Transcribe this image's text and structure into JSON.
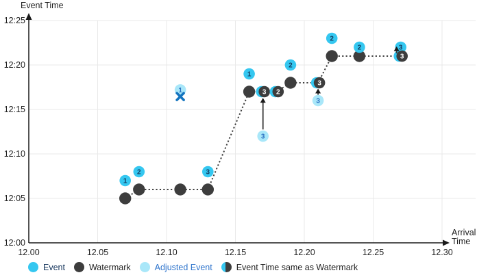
{
  "chart_data": {
    "type": "scatter",
    "x_axis": {
      "label_line1": "Arrival",
      "label_line2": "Time",
      "range": [
        12.0,
        12.3
      ],
      "ticks": [
        {
          "v": 12.0,
          "label": "12.00"
        },
        {
          "v": 12.05,
          "label": "12.05"
        },
        {
          "v": 12.1,
          "label": "12.10"
        },
        {
          "v": 12.15,
          "label": "12.15"
        },
        {
          "v": 12.2,
          "label": "12.20"
        },
        {
          "v": 12.25,
          "label": "12.25"
        },
        {
          "v": 12.3,
          "label": "12.30"
        }
      ]
    },
    "y_axis": {
      "label": "Event Time",
      "range_minutes": [
        0,
        25
      ],
      "ticks": [
        {
          "m": 0,
          "label": "12:00"
        },
        {
          "m": 5,
          "label": "12:05"
        },
        {
          "m": 10,
          "label": "12:10"
        },
        {
          "m": 15,
          "label": "12:15"
        },
        {
          "m": 20,
          "label": "12:20"
        },
        {
          "m": 25,
          "label": "12:25"
        }
      ]
    },
    "watermark_line": [
      [
        12.07,
        5
      ],
      [
        12.08,
        6
      ],
      [
        12.13,
        6
      ],
      [
        12.16,
        17
      ],
      [
        12.18,
        17
      ],
      [
        12.19,
        18
      ],
      [
        12.21,
        18
      ],
      [
        12.22,
        21
      ],
      [
        12.27,
        21
      ]
    ],
    "markers": [
      {
        "type": "watermark",
        "arrival": 12.07,
        "event_time": "12:05",
        "minutes": 5
      },
      {
        "type": "watermark",
        "arrival": 12.08,
        "event_time": "12:06",
        "minutes": 6
      },
      {
        "type": "watermark",
        "arrival": 12.11,
        "event_time": "12:06",
        "minutes": 6
      },
      {
        "type": "watermark",
        "arrival": 12.13,
        "event_time": "12:06",
        "minutes": 6
      },
      {
        "type": "watermark",
        "arrival": 12.16,
        "event_time": "12:17",
        "minutes": 17
      },
      {
        "type": "watermark",
        "arrival": 12.19,
        "event_time": "12:18",
        "minutes": 18
      },
      {
        "type": "watermark",
        "arrival": 12.22,
        "event_time": "12:21",
        "minutes": 21
      },
      {
        "type": "watermark",
        "arrival": 12.24,
        "event_time": "12:21",
        "minutes": 21
      },
      {
        "type": "event",
        "label": "1",
        "arrival": 12.07,
        "event_time": "12:07",
        "minutes": 7
      },
      {
        "type": "event",
        "label": "2",
        "arrival": 12.08,
        "event_time": "12:08",
        "minutes": 8
      },
      {
        "type": "event",
        "label": "3",
        "arrival": 12.13,
        "event_time": "12:08",
        "minutes": 8
      },
      {
        "type": "event",
        "label": "1",
        "arrival": 12.16,
        "event_time": "12:19",
        "minutes": 19
      },
      {
        "type": "event",
        "label": "2",
        "arrival": 12.19,
        "event_time": "12:20",
        "minutes": 20
      },
      {
        "type": "event",
        "label": "2",
        "arrival": 12.22,
        "event_time": "12:23",
        "minutes": 23
      },
      {
        "type": "event",
        "label": "2",
        "arrival": 12.24,
        "event_time": "12:22",
        "minutes": 22
      },
      {
        "type": "event",
        "label": "3",
        "arrival": 12.27,
        "event_time": "12:22",
        "minutes": 22
      },
      {
        "type": "event_at_watermark",
        "label": "3",
        "arrival": 12.17,
        "event_time": "12:17",
        "minutes": 17
      },
      {
        "type": "event_at_watermark",
        "label": "2",
        "arrival": 12.18,
        "event_time": "12:17",
        "minutes": 17
      },
      {
        "type": "event_at_watermark",
        "label": "3",
        "arrival": 12.21,
        "event_time": "12:18",
        "minutes": 18
      },
      {
        "type": "event_at_watermark",
        "label": "3",
        "arrival": 12.27,
        "event_time": "12:21",
        "minutes": 21
      },
      {
        "type": "adjusted",
        "label": "1",
        "arrival": 12.11,
        "event_time": "12:17",
        "minutes": 17.2
      },
      {
        "type": "adjusted",
        "label": "3",
        "arrival": 12.17,
        "event_time": "12:12",
        "minutes": 12
      },
      {
        "type": "adjusted",
        "label": "3",
        "arrival": 12.21,
        "event_time": "12:16",
        "minutes": 16
      },
      {
        "type": "dropped_x",
        "arrival": 12.11,
        "minutes": 16.45
      }
    ],
    "arrows": [
      {
        "x": 12.17,
        "from_minutes": 12.75,
        "to_minutes": 16.3
      },
      {
        "x": 12.21,
        "from_minutes": 16.65,
        "to_minutes": 17.35
      },
      {
        "x": 12.267,
        "from_minutes": 21.3,
        "to_minutes": 22.1
      }
    ],
    "legend": [
      {
        "key": "event",
        "label": "Event",
        "label_color": "#17365d"
      },
      {
        "key": "watermark",
        "label": "Watermark",
        "label_color": "#1f1f1f"
      },
      {
        "key": "adjusted",
        "label": "Adjusted Event",
        "label_color": "#2e74cc"
      },
      {
        "key": "event_at_watermark",
        "label": "Event Time same as Watermark",
        "label_color": "#1f1f1f"
      }
    ]
  },
  "colors": {
    "event": "#35c7f0",
    "watermark": "#3d3d3d",
    "adjusted": "#a9e7f9",
    "event_label_text": "#123a5e",
    "adjusted_label_text": "#2a6fc2",
    "half_label_text": "#ffffff",
    "grid": "#e9e9e9",
    "axis": "#1a1a1a",
    "tick_text": "#1f1f1f",
    "arrow": "#3a3a3a",
    "dotted_line": "#3f3f3f",
    "dropped_x": "#1474bf"
  }
}
